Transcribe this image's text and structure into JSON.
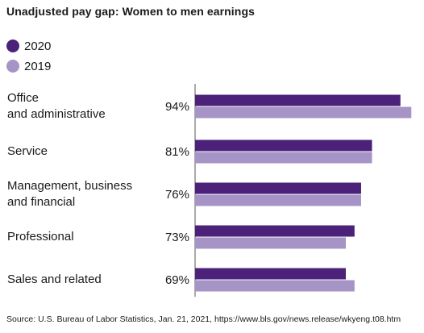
{
  "chart_data": {
    "type": "bar",
    "orientation": "horizontal",
    "title": "Unadjusted pay gap: Women to men earnings",
    "categories": [
      [
        "Office",
        "and administrative"
      ],
      [
        "Service"
      ],
      [
        "Management, business",
        "and financial"
      ],
      [
        "Professional"
      ],
      [
        "Sales and related"
      ]
    ],
    "value_labels": [
      "94%",
      "81%",
      "76%",
      "73%",
      "69%"
    ],
    "series": [
      {
        "name": "2020",
        "color": "#4b2179",
        "values": [
          94,
          81,
          76,
          73,
          69
        ]
      },
      {
        "name": "2019",
        "color": "#a594c5",
        "values": [
          99,
          81,
          76,
          69,
          73
        ]
      }
    ],
    "xlim": [
      0,
      100
    ],
    "grid": false,
    "legend_placement": "top-left",
    "source": "Source: U.S. Bureau of Labor Statistics, Jan. 21, 2021, https://www.bls.gov/news.release/wkyeng.t08.htm"
  }
}
